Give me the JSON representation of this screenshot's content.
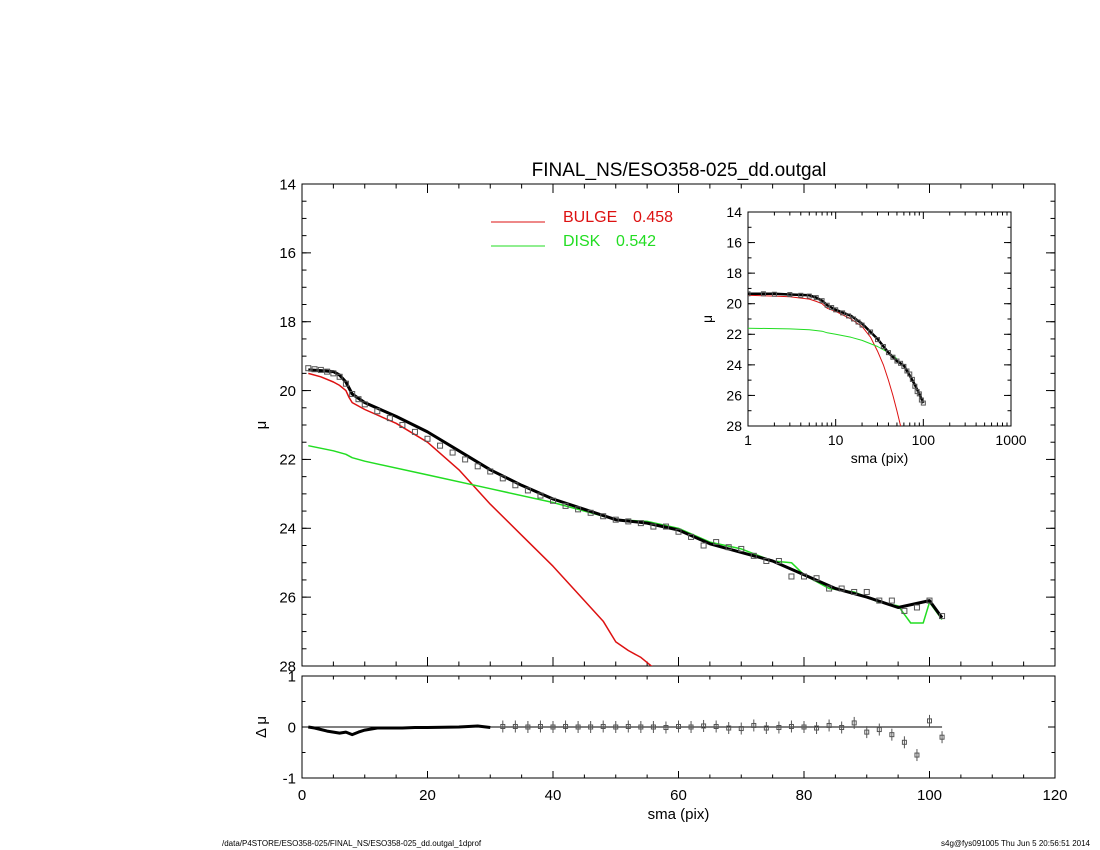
{
  "footer": {
    "left": "/data/P4STORE/ESO358-025/FINAL_NS/ESO358-025_dd.outgal_1dprof",
    "right": "s4g@fys091005  Thu Jun  5 20:56:51 2014"
  },
  "colors": {
    "bulge": "#dd1111",
    "disk": "#22dd22",
    "data": "#555555",
    "model": "#000000",
    "axes": "#000000"
  },
  "chart_data": [
    {
      "id": "main",
      "type": "line",
      "title": "FINAL_NS/ESO358-025_dd.outgal",
      "xlabel": "",
      "ylabel": "μ",
      "xlim": [
        0,
        120
      ],
      "ylim": [
        28,
        14
      ],
      "y_inverted": true,
      "xticks": [
        0,
        20,
        40,
        60,
        80,
        100,
        120
      ],
      "xtick_labels": [
        "",
        "",
        "",
        "",
        "",
        "",
        ""
      ],
      "yticks": [
        14,
        16,
        18,
        20,
        22,
        24,
        26,
        28
      ],
      "ytick_labels": [
        "14",
        "16",
        "18",
        "20",
        "22",
        "24",
        "26",
        "28"
      ],
      "legend": [
        {
          "label": "BULGE",
          "value": "0.458",
          "color": "#dd1111"
        },
        {
          "label": "DISK",
          "value": "0.542",
          "color": "#22dd22"
        }
      ],
      "legend_position": "top-center",
      "series": [
        {
          "name": "BULGE",
          "kind": "line",
          "color": "#dd1111",
          "x": [
            1,
            3,
            5,
            6,
            7,
            7.5,
            8,
            10,
            15,
            20,
            25,
            30,
            35,
            40,
            45,
            48,
            50,
            52,
            54,
            56
          ],
          "y": [
            19.5,
            19.6,
            19.75,
            19.85,
            20.0,
            20.2,
            20.35,
            20.55,
            20.95,
            21.5,
            22.3,
            23.3,
            24.2,
            25.1,
            26.1,
            26.7,
            27.3,
            27.55,
            27.75,
            28.05
          ]
        },
        {
          "name": "DISK",
          "kind": "line",
          "color": "#22dd22",
          "x": [
            1,
            5,
            7,
            8,
            10,
            20,
            30,
            40,
            50,
            55,
            60,
            65,
            70,
            75,
            78,
            80,
            84,
            88,
            92,
            95,
            97,
            99,
            100,
            102
          ],
          "y": [
            21.6,
            21.75,
            21.85,
            21.95,
            22.05,
            22.45,
            22.85,
            23.25,
            23.75,
            23.8,
            24.0,
            24.4,
            24.6,
            24.95,
            25.0,
            25.35,
            25.75,
            25.85,
            26.15,
            26.25,
            26.75,
            26.75,
            26.15,
            26.65
          ]
        },
        {
          "name": "model",
          "kind": "line",
          "color": "#000000",
          "x": [
            1,
            3,
            5,
            6,
            7,
            8,
            10,
            15,
            20,
            25,
            30,
            35,
            40,
            45,
            50,
            55,
            60,
            65,
            70,
            75,
            80,
            85,
            90,
            95,
            100,
            102
          ],
          "y": [
            19.4,
            19.42,
            19.45,
            19.55,
            19.75,
            20.1,
            20.35,
            20.75,
            21.2,
            21.75,
            22.3,
            22.75,
            23.15,
            23.45,
            23.75,
            23.85,
            24.05,
            24.45,
            24.7,
            24.95,
            25.35,
            25.75,
            26.0,
            26.3,
            26.1,
            26.6
          ]
        },
        {
          "name": "data",
          "kind": "scatter",
          "color": "#555555",
          "x": [
            1,
            2,
            3,
            4,
            5,
            6,
            7,
            8,
            9,
            10,
            12,
            14,
            16,
            18,
            20,
            22,
            24,
            26,
            28,
            30,
            32,
            34,
            36,
            38,
            40,
            42,
            44,
            46,
            48,
            50,
            52,
            54,
            56,
            58,
            60,
            62,
            64,
            66,
            68,
            70,
            72,
            74,
            76,
            78,
            80,
            82,
            84,
            86,
            88,
            90,
            92,
            94,
            96,
            98,
            100,
            102
          ],
          "y": [
            19.35,
            19.38,
            19.4,
            19.45,
            19.5,
            19.6,
            19.8,
            20.1,
            20.25,
            20.4,
            20.6,
            20.8,
            21.0,
            21.2,
            21.4,
            21.6,
            21.8,
            22.0,
            22.2,
            22.35,
            22.55,
            22.75,
            22.9,
            23.05,
            23.2,
            23.35,
            23.45,
            23.55,
            23.65,
            23.75,
            23.8,
            23.85,
            23.95,
            23.95,
            24.1,
            24.25,
            24.5,
            24.4,
            24.55,
            24.6,
            24.8,
            24.95,
            24.95,
            25.4,
            25.4,
            25.45,
            25.75,
            25.75,
            25.85,
            25.85,
            26.1,
            26.1,
            26.4,
            26.3,
            26.1,
            26.55
          ]
        }
      ]
    },
    {
      "id": "residual",
      "type": "scatter",
      "title": "",
      "xlabel": "sma (pix)",
      "ylabel": "Δ μ",
      "xlim": [
        0,
        120
      ],
      "ylim": [
        -1,
        1
      ],
      "xticks": [
        0,
        20,
        40,
        60,
        80,
        100,
        120
      ],
      "xtick_labels": [
        "0",
        "20",
        "40",
        "60",
        "80",
        "100",
        "120"
      ],
      "yticks": [
        -1,
        0,
        1
      ],
      "ytick_labels": [
        "-1",
        "0",
        "1"
      ],
      "zero_line": [
        0,
        102
      ],
      "residual_line": {
        "x": [
          1,
          2,
          3,
          4,
          5,
          6,
          7,
          8,
          9,
          10,
          12,
          14,
          16,
          18,
          20,
          25,
          28,
          30
        ],
        "y": [
          0.0,
          -0.02,
          -0.05,
          -0.08,
          -0.1,
          -0.12,
          -0.1,
          -0.15,
          -0.1,
          -0.06,
          -0.02,
          -0.02,
          -0.02,
          -0.01,
          -0.01,
          0.0,
          0.02,
          -0.01
        ]
      },
      "points": {
        "x": [
          32,
          34,
          36,
          38,
          40,
          42,
          44,
          46,
          48,
          50,
          52,
          54,
          56,
          58,
          60,
          62,
          64,
          66,
          68,
          70,
          72,
          74,
          76,
          78,
          80,
          82,
          84,
          86,
          88,
          90,
          92,
          94,
          96,
          98,
          100,
          102
        ],
        "y": [
          0.01,
          0.01,
          0.0,
          0.01,
          0.0,
          0.01,
          0.0,
          0.0,
          0.01,
          0.0,
          0.01,
          0.0,
          0.0,
          -0.01,
          0.01,
          0.0,
          0.02,
          0.01,
          -0.02,
          -0.03,
          0.03,
          -0.02,
          -0.01,
          0.01,
          0.0,
          -0.02,
          0.03,
          -0.01,
          0.08,
          -0.1,
          -0.05,
          -0.15,
          -0.3,
          -0.55,
          0.12,
          -0.2
        ]
      }
    },
    {
      "id": "inset",
      "type": "line",
      "title": "",
      "xlabel": "sma (pix)",
      "ylabel": "μ",
      "xscale": "log",
      "xlim": [
        1,
        1000
      ],
      "ylim": [
        28,
        14
      ],
      "y_inverted": true,
      "xticks": [
        1,
        10,
        100,
        1000
      ],
      "xtick_labels": [
        "1",
        "10",
        "100",
        "1000"
      ],
      "yticks": [
        14,
        16,
        18,
        20,
        22,
        24,
        26,
        28
      ],
      "ytick_labels": [
        "14",
        "16",
        "18",
        "20",
        "22",
        "24",
        "26",
        "28"
      ],
      "series": [
        {
          "name": "BULGE",
          "kind": "line",
          "color": "#dd1111",
          "x": [
            1,
            2,
            3,
            5,
            6,
            7,
            8,
            10,
            15,
            20,
            25,
            30,
            35,
            40,
            45,
            50,
            55
          ],
          "y": [
            19.45,
            19.5,
            19.55,
            19.7,
            19.85,
            20.0,
            20.3,
            20.5,
            21.0,
            21.5,
            22.2,
            23.1,
            24.0,
            25.0,
            26.0,
            27.0,
            28.0
          ]
        },
        {
          "name": "DISK",
          "kind": "line",
          "color": "#22dd22",
          "x": [
            1,
            3,
            5,
            7,
            8,
            10,
            15,
            20,
            30,
            40,
            50
          ],
          "y": [
            21.6,
            21.65,
            21.7,
            21.8,
            21.9,
            22.0,
            22.2,
            22.4,
            22.8,
            23.2,
            23.6
          ]
        },
        {
          "name": "model",
          "kind": "line",
          "color": "#000000",
          "x": [
            1,
            2,
            3,
            5,
            6,
            7,
            8,
            10,
            15,
            20,
            30,
            40,
            50,
            60,
            70,
            80,
            90,
            100
          ],
          "y": [
            19.35,
            19.35,
            19.4,
            19.45,
            19.6,
            19.8,
            20.1,
            20.4,
            20.8,
            21.3,
            22.3,
            23.2,
            23.75,
            24.05,
            24.7,
            25.3,
            25.9,
            26.5
          ]
        },
        {
          "name": "data",
          "kind": "scatter",
          "color": "#555555",
          "x": [
            1,
            1.5,
            2,
            3,
            4,
            5,
            6,
            7,
            8,
            9,
            10,
            12,
            14,
            16,
            18,
            20,
            25,
            30,
            35,
            40,
            45,
            50,
            55,
            60,
            65,
            70,
            75,
            80,
            85,
            90,
            95,
            100
          ],
          "y": [
            19.35,
            19.35,
            19.38,
            19.4,
            19.45,
            19.5,
            19.6,
            19.8,
            20.1,
            20.25,
            20.4,
            20.6,
            20.8,
            21.0,
            21.2,
            21.4,
            21.85,
            22.35,
            22.8,
            23.2,
            23.5,
            23.75,
            23.9,
            24.1,
            24.4,
            24.6,
            24.95,
            25.4,
            25.75,
            25.9,
            26.3,
            26.5
          ]
        }
      ]
    }
  ]
}
